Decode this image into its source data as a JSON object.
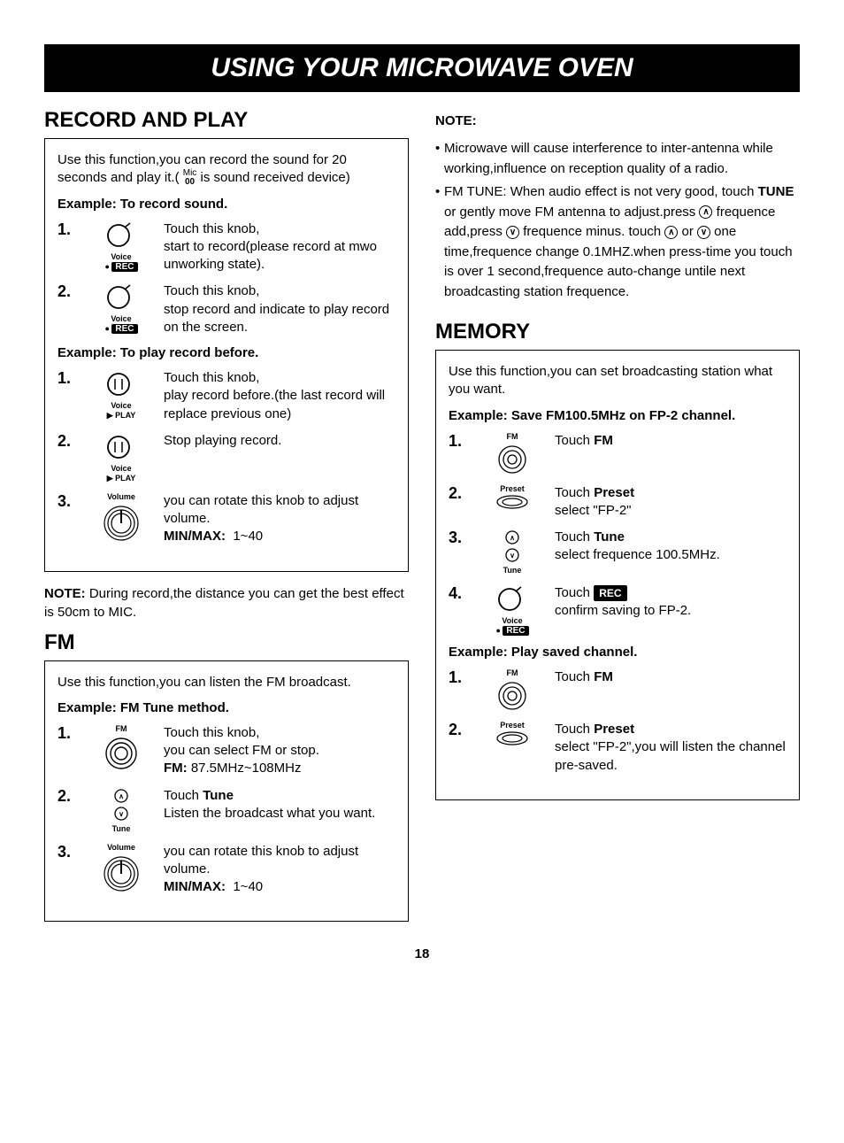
{
  "title": "USING YOUR MICROWAVE OVEN",
  "page_number": "18",
  "record_play": {
    "heading": "RECORD AND PLAY",
    "intro_pre": "Use this function,you can record the sound for 20 seconds and play it.( ",
    "intro_post": " is sound received device)",
    "ex1_label": "Example: To record sound.",
    "ex1_steps": [
      {
        "num": "1.",
        "text": "Touch this knob,\nstart to record(please record at mwo unworking state)."
      },
      {
        "num": "2.",
        "text": "Touch this knob,\nstop record and indicate to play record on the screen."
      }
    ],
    "ex2_label": "Example: To play record before.",
    "ex2_steps": [
      {
        "num": "1.",
        "text": "Touch this knob,\nplay record before.(the last record will replace previous one)"
      },
      {
        "num": "2.",
        "text": "Stop playing record."
      },
      {
        "num": "3.",
        "text": "you can rotate this knob to adjust volume.",
        "minmax": "MIN/MAX:",
        "minmax_val": "1~40"
      }
    ],
    "note_label": "NOTE:",
    "note_text": " During record,the distance you can get the best effect is 50cm to MIC."
  },
  "fm": {
    "heading": "FM",
    "intro": "Use this function,you can listen the FM broadcast.",
    "ex_label": "Example: FM Tune method.",
    "steps": [
      {
        "num": "1.",
        "text": "Touch this knob,\nyou can select FM or stop.",
        "sub_bold": "FM:",
        "sub_val": " 87.5MHz~108MHz"
      },
      {
        "num": "2.",
        "pre": "Touch ",
        "bold": "Tune",
        "text": "\nListen the broadcast what you want."
      },
      {
        "num": "3.",
        "text": "you can rotate this knob to adjust volume.",
        "minmax": "MIN/MAX:",
        "minmax_val": "1~40"
      }
    ]
  },
  "note_right": {
    "heading": "NOTE:",
    "bullet1": "Microwave will cause interference to inter-antenna while working,influence on reception quality of a radio.",
    "bullet2_pre": "FM TUNE: When audio effect is not very good, touch ",
    "bullet2_tune": "TUNE",
    "bullet2_mid1": " or gently move FM antenna to adjust.press ",
    "bullet2_mid2": " frequence add,press ",
    "bullet2_mid3": " frequence minus. touch ",
    "bullet2_mid4": " or ",
    "bullet2_post": " one time,frequence change 0.1MHZ.when press-time you touch is over 1 second,frequence auto-change untile next broadcasting station frequence."
  },
  "memory": {
    "heading": "MEMORY",
    "intro": "Use this function,you can set broadcasting station what you want.",
    "ex1_label": "Example: Save FM100.5MHz on FP-2 channel.",
    "ex1_steps": [
      {
        "num": "1.",
        "pre": "Touch ",
        "bold": "FM"
      },
      {
        "num": "2.",
        "pre": "Touch ",
        "bold": "Preset",
        "post": "select   \"FP-2\""
      },
      {
        "num": "3.",
        "pre": "Touch ",
        "bold": "Tune",
        "post": "select frequence 100.5MHz."
      },
      {
        "num": "4.",
        "pre": "Touch ",
        "rec": "REC",
        "post": "confirm saving to FP-2."
      }
    ],
    "ex2_label": "Example: Play saved channel.",
    "ex2_steps": [
      {
        "num": "1.",
        "pre": "Touch ",
        "bold": "FM"
      },
      {
        "num": "2.",
        "pre": "Touch ",
        "bold": "Preset",
        "post": "select   \"FP-2\",you will listen the channel pre-saved."
      }
    ]
  },
  "icons": {
    "voice_rec": "Voice",
    "voice_play": "Voice",
    "volume": "Volume",
    "fm": "FM",
    "preset": "Preset",
    "tune": "Tune",
    "play_label": "PLAY",
    "rec_label": "REC"
  }
}
